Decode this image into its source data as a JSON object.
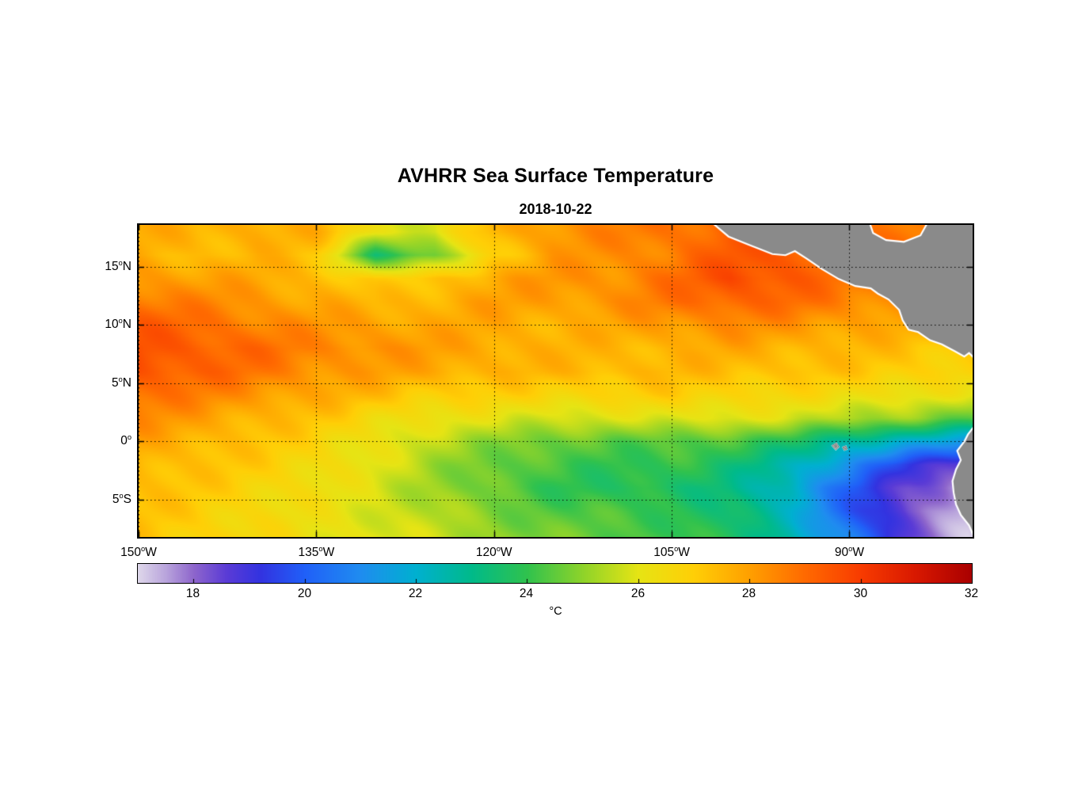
{
  "title": "AVHRR Sea Surface Temperature",
  "subtitle": "2018-10-22",
  "chart_data": {
    "type": "heatmap",
    "title": "AVHRR Sea Surface Temperature",
    "subtitle": "2018-10-22",
    "lon_range": [
      -150,
      -79.6
    ],
    "lat_range": [
      -8.2,
      18.6
    ],
    "x_ticks": [
      {
        "value": -150,
        "num": "150",
        "hemi": "W"
      },
      {
        "value": -135,
        "num": "135",
        "hemi": "W"
      },
      {
        "value": -120,
        "num": "120",
        "hemi": "W"
      },
      {
        "value": -105,
        "num": "105",
        "hemi": "W"
      },
      {
        "value": -90,
        "num": "90",
        "hemi": "W"
      }
    ],
    "y_ticks": [
      {
        "value": 15,
        "num": "15",
        "hemi": "N"
      },
      {
        "value": 10,
        "num": "10",
        "hemi": "N"
      },
      {
        "value": 5,
        "num": "5",
        "hemi": "N"
      },
      {
        "value": 0,
        "num": "0",
        "hemi": ""
      },
      {
        "value": -5,
        "num": "5",
        "hemi": "S"
      }
    ],
    "gridlines": {
      "style": "dotted",
      "color": "#000000"
    },
    "land_color": "#8a8a8a",
    "coast_color": "#ffffff",
    "colorbar": {
      "min": 17,
      "max": 32,
      "ticks": [
        18,
        20,
        22,
        24,
        26,
        28,
        30,
        32
      ],
      "unit": "°C",
      "stops": [
        [
          17.0,
          "#ded7ea"
        ],
        [
          17.5,
          "#b9a4dc"
        ],
        [
          18.0,
          "#8e66cc"
        ],
        [
          18.6,
          "#5a3bd6"
        ],
        [
          19.2,
          "#3333e0"
        ],
        [
          20.0,
          "#2060f8"
        ],
        [
          21.0,
          "#1f8cf0"
        ],
        [
          22.0,
          "#00b0d0"
        ],
        [
          23.0,
          "#00ba8a"
        ],
        [
          24.0,
          "#30c24e"
        ],
        [
          25.0,
          "#8ed32a"
        ],
        [
          26.0,
          "#e6e414"
        ],
        [
          27.0,
          "#ffcf06"
        ],
        [
          28.0,
          "#ffa000"
        ],
        [
          29.0,
          "#ff6a00"
        ],
        [
          30.0,
          "#f83c00"
        ],
        [
          31.0,
          "#d81800"
        ],
        [
          32.0,
          "#aa0000"
        ]
      ]
    },
    "grid": {
      "lons": [
        -150,
        -145,
        -140,
        -135,
        -130,
        -125,
        -120,
        -115,
        -110,
        -105,
        -100,
        -95,
        -90,
        -85,
        -80
      ],
      "lats": [
        18,
        16,
        14,
        12,
        10,
        8,
        6,
        4,
        2,
        0,
        -2,
        -4,
        -6,
        -8
      ],
      "sst": [
        [
          27.8,
          27.5,
          27.8,
          27.6,
          26.2,
          25.8,
          27.6,
          28.2,
          28.5,
          28.8,
          29.2,
          29.0,
          28.8,
          28.6,
          28.5
        ],
        [
          27.6,
          27.4,
          27.6,
          27.2,
          23.6,
          24.6,
          27.0,
          28.0,
          28.3,
          28.7,
          29.4,
          29.4,
          29.0,
          28.8,
          28.5
        ],
        [
          28.2,
          28.0,
          27.8,
          27.5,
          26.8,
          27.2,
          27.8,
          28.2,
          28.3,
          28.9,
          29.7,
          29.4,
          28.8,
          28.6,
          28.4
        ],
        [
          28.8,
          28.5,
          28.2,
          27.8,
          27.5,
          27.6,
          28.0,
          28.0,
          28.2,
          28.8,
          29.2,
          29.0,
          28.5,
          28.3,
          28.3
        ],
        [
          29.3,
          29.0,
          28.6,
          28.2,
          28.0,
          27.8,
          27.8,
          27.6,
          27.8,
          28.2,
          28.4,
          28.2,
          28.0,
          27.8,
          27.6
        ],
        [
          29.6,
          29.3,
          29.0,
          28.5,
          28.3,
          28.0,
          27.8,
          27.6,
          27.5,
          27.6,
          27.8,
          27.6,
          27.5,
          27.3,
          27.0
        ],
        [
          29.5,
          29.2,
          28.8,
          28.3,
          28.0,
          27.8,
          27.6,
          27.5,
          27.5,
          27.5,
          27.4,
          27.3,
          27.2,
          27.0,
          26.8
        ],
        [
          29.0,
          28.6,
          28.2,
          27.8,
          27.4,
          27.0,
          26.9,
          26.8,
          26.8,
          27.0,
          26.8,
          26.6,
          26.5,
          26.3,
          26.0
        ],
        [
          28.4,
          28.0,
          27.6,
          27.2,
          26.6,
          26.2,
          26.0,
          25.8,
          25.8,
          26.0,
          26.0,
          25.8,
          25.4,
          25.0,
          24.4
        ],
        [
          27.9,
          27.6,
          27.2,
          26.8,
          26.2,
          25.5,
          25.0,
          24.6,
          24.4,
          24.5,
          24.2,
          23.8,
          22.6,
          22.0,
          21.4
        ],
        [
          27.6,
          27.3,
          27.0,
          26.6,
          26.0,
          25.2,
          24.6,
          24.2,
          24.0,
          24.0,
          23.5,
          22.5,
          21.0,
          19.3,
          18.4
        ],
        [
          27.4,
          27.1,
          26.8,
          26.4,
          25.8,
          25.2,
          24.5,
          24.0,
          23.8,
          23.6,
          23.2,
          22.0,
          20.0,
          18.4,
          17.4
        ],
        [
          27.3,
          27.0,
          26.6,
          26.2,
          25.9,
          25.4,
          24.8,
          24.4,
          24.2,
          24.0,
          23.4,
          22.2,
          20.0,
          18.2,
          17.2
        ],
        [
          27.2,
          26.9,
          26.6,
          26.2,
          26.0,
          25.6,
          25.1,
          24.7,
          24.4,
          24.2,
          23.6,
          22.6,
          20.6,
          18.6,
          17.2
        ]
      ]
    },
    "land": [
      {
        "name": "central-america",
        "points": [
          [
            -101.6,
            18.8
          ],
          [
            -100.2,
            17.6
          ],
          [
            -98.5,
            16.9
          ],
          [
            -96.5,
            16.1
          ],
          [
            -95.4,
            16.0
          ],
          [
            -94.6,
            16.35
          ],
          [
            -93.6,
            15.7
          ],
          [
            -92.3,
            14.8
          ],
          [
            -90.9,
            13.95
          ],
          [
            -89.5,
            13.35
          ],
          [
            -88.2,
            13.15
          ],
          [
            -87.6,
            12.7
          ],
          [
            -86.7,
            12.2
          ],
          [
            -85.8,
            11.3
          ],
          [
            -85.5,
            10.4
          ],
          [
            -85.0,
            9.6
          ],
          [
            -84.2,
            9.4
          ],
          [
            -83.2,
            8.7
          ],
          [
            -82.2,
            8.35
          ],
          [
            -81.1,
            7.75
          ],
          [
            -80.3,
            7.3
          ],
          [
            -79.9,
            7.6
          ],
          [
            -79.4,
            7.1
          ],
          [
            -79.4,
            18.8
          ],
          [
            -83.4,
            18.8
          ],
          [
            -84.0,
            17.7
          ],
          [
            -85.4,
            17.15
          ],
          [
            -86.9,
            17.3
          ],
          [
            -88.0,
            17.9
          ],
          [
            -88.3,
            18.8
          ]
        ]
      },
      {
        "name": "south-america",
        "points": [
          [
            -79.4,
            1.4
          ],
          [
            -80.0,
            0.6
          ],
          [
            -80.3,
            0.0
          ],
          [
            -80.9,
            -0.8
          ],
          [
            -80.6,
            -1.6
          ],
          [
            -81.0,
            -2.4
          ],
          [
            -81.3,
            -3.4
          ],
          [
            -81.2,
            -4.4
          ],
          [
            -81.0,
            -5.4
          ],
          [
            -80.6,
            -6.3
          ],
          [
            -79.9,
            -7.2
          ],
          [
            -79.4,
            -8.4
          ]
        ]
      }
    ],
    "islands": [
      {
        "name": "galapagos-west",
        "points": [
          [
            -91.45,
            -0.35
          ],
          [
            -91.1,
            -0.15
          ],
          [
            -90.9,
            -0.45
          ],
          [
            -91.15,
            -0.7
          ]
        ]
      },
      {
        "name": "galapagos-east",
        "points": [
          [
            -90.55,
            -0.5
          ],
          [
            -90.3,
            -0.4
          ],
          [
            -90.2,
            -0.65
          ],
          [
            -90.42,
            -0.75
          ]
        ]
      }
    ]
  }
}
